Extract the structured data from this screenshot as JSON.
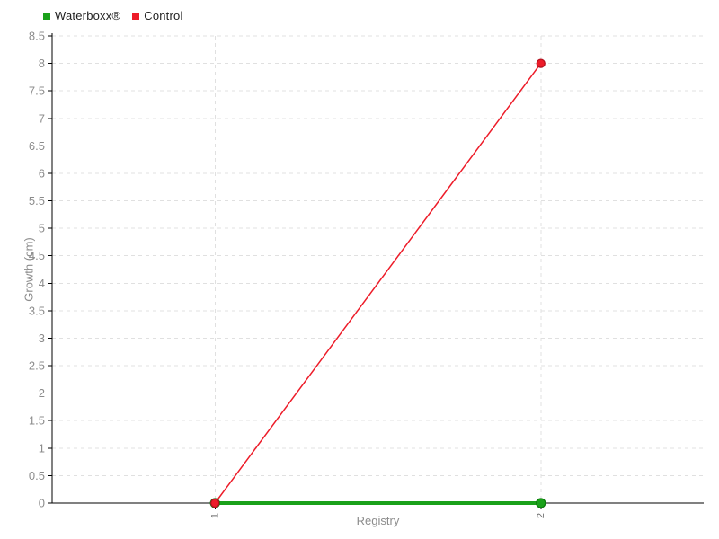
{
  "legend": {
    "items": [
      {
        "label": "Waterboxx®",
        "color": "#1aa11a"
      },
      {
        "label": "Control",
        "color": "#ed1c29"
      }
    ]
  },
  "chart_data": {
    "type": "line",
    "title": "",
    "xlabel": "Registry",
    "ylabel": "Growth (cm)",
    "x": [
      1,
      2
    ],
    "x_tick_labels": [
      "1",
      "2"
    ],
    "xlim": [
      0.5,
      2.5
    ],
    "ylim": [
      0,
      8.5
    ],
    "y_ticks": [
      0,
      0.5,
      1,
      1.5,
      2,
      2.5,
      3,
      3.5,
      4,
      4.5,
      5,
      5.5,
      6,
      6.5,
      7,
      7.5,
      8,
      8.5
    ],
    "y_tick_labels": [
      "0",
      "0.5",
      "1",
      "1.5",
      "2",
      "2.5",
      "3",
      "3.5",
      "4",
      "4.5",
      "5",
      "5.5",
      "6",
      "6.5",
      "7",
      "7.5",
      "8",
      "8.5"
    ],
    "grid": "dashed",
    "legend_position": "top-left",
    "series": [
      {
        "name": "Waterboxx®",
        "color": "#1aa11a",
        "marker_stroke": "#0c7a0c",
        "line_width": 4,
        "marker_radius": 5,
        "values": [
          0,
          0
        ]
      },
      {
        "name": "Control",
        "color": "#ed1c29",
        "marker_stroke": "#b5121f",
        "line_width": 1.5,
        "marker_radius": 4.5,
        "values": [
          0,
          8
        ]
      }
    ]
  },
  "colors": {
    "axis": "#000000",
    "grid": "#e0e0e0",
    "tick_label": "#8c8c8c",
    "axis_title": "#8c8c8c",
    "x_tick_label": "#6e6e6e",
    "background": "#ffffff"
  }
}
